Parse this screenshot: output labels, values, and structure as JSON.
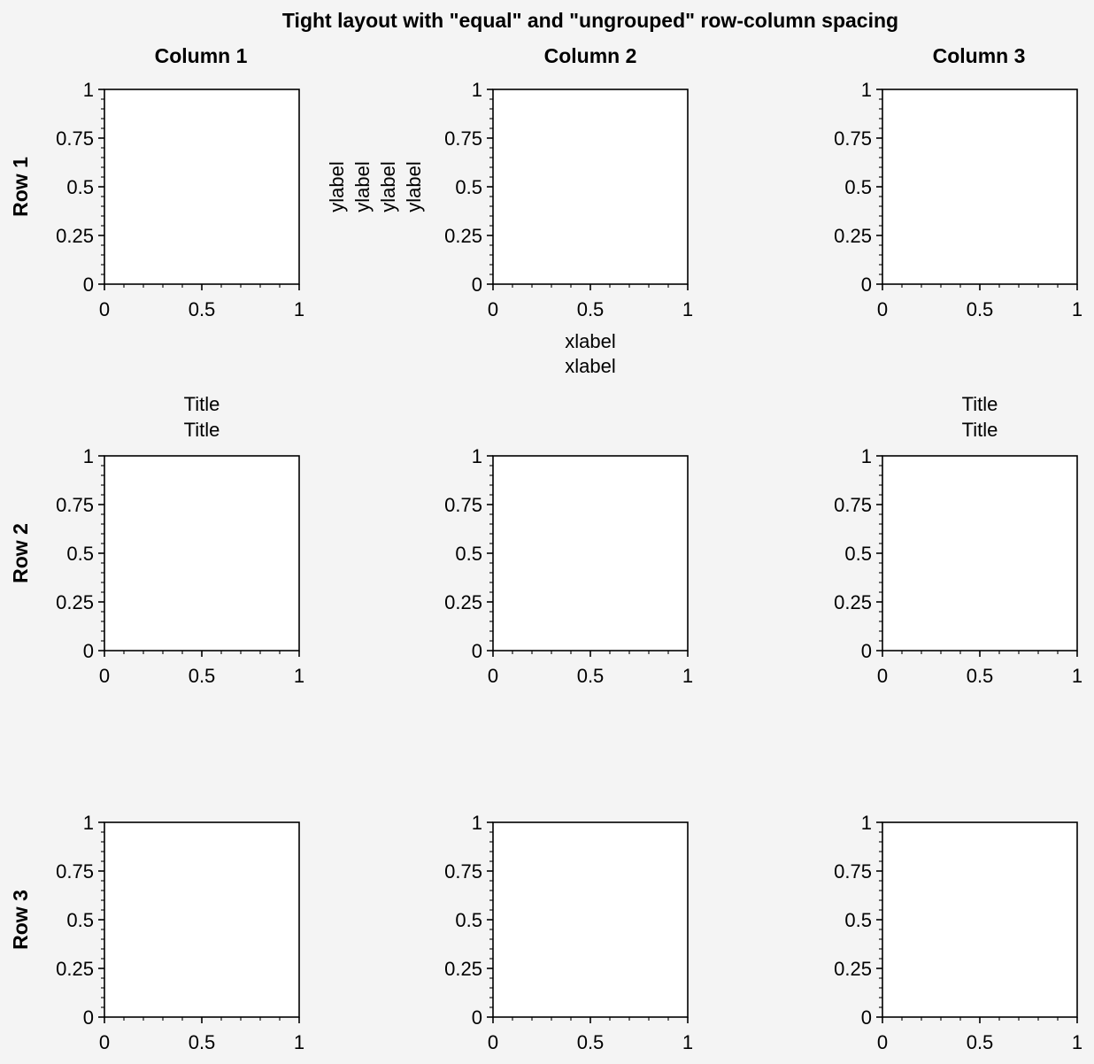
{
  "figure": {
    "title": "Tight layout with \"equal\" and \"ungrouped\" row-column spacing",
    "column_titles": [
      "Column 1",
      "Column 2",
      "Column 3"
    ],
    "row_titles": [
      "Row 1",
      "Row 2",
      "Row 3"
    ]
  },
  "chart_data": [
    {
      "type": "line",
      "row": 1,
      "col": 1,
      "xlim": [
        0,
        1
      ],
      "ylim": [
        0,
        1
      ],
      "xticks": [
        "0",
        "0.5",
        "1"
      ],
      "yticks": [
        "0",
        "0.25",
        "0.5",
        "0.75",
        "1"
      ],
      "series": []
    },
    {
      "type": "line",
      "row": 1,
      "col": 2,
      "xlim": [
        0,
        1
      ],
      "ylim": [
        0,
        1
      ],
      "xticks": [
        "0",
        "0.5",
        "1"
      ],
      "yticks": [
        "0",
        "0.25",
        "0.5",
        "0.75",
        "1"
      ],
      "xlabel": [
        "xlabel",
        "xlabel"
      ],
      "ylabel": [
        "ylabel",
        "ylabel",
        "ylabel",
        "ylabel"
      ],
      "series": []
    },
    {
      "type": "line",
      "row": 1,
      "col": 3,
      "xlim": [
        0,
        1
      ],
      "ylim": [
        0,
        1
      ],
      "xticks": [
        "0",
        "0.5",
        "1"
      ],
      "yticks": [
        "0",
        "0.25",
        "0.5",
        "0.75",
        "1"
      ],
      "series": []
    },
    {
      "type": "line",
      "row": 2,
      "col": 1,
      "xlim": [
        0,
        1
      ],
      "ylim": [
        0,
        1
      ],
      "xticks": [
        "0",
        "0.5",
        "1"
      ],
      "yticks": [
        "0",
        "0.25",
        "0.5",
        "0.75",
        "1"
      ],
      "title": [
        "Title",
        "Title"
      ],
      "series": []
    },
    {
      "type": "line",
      "row": 2,
      "col": 2,
      "xlim": [
        0,
        1
      ],
      "ylim": [
        0,
        1
      ],
      "xticks": [
        "0",
        "0.5",
        "1"
      ],
      "yticks": [
        "0",
        "0.25",
        "0.5",
        "0.75",
        "1"
      ],
      "series": []
    },
    {
      "type": "line",
      "row": 2,
      "col": 3,
      "xlim": [
        0,
        1
      ],
      "ylim": [
        0,
        1
      ],
      "xticks": [
        "0",
        "0.5",
        "1"
      ],
      "yticks": [
        "0",
        "0.25",
        "0.5",
        "0.75",
        "1"
      ],
      "title": [
        "Title",
        "Title"
      ],
      "series": []
    },
    {
      "type": "line",
      "row": 3,
      "col": 1,
      "xlim": [
        0,
        1
      ],
      "ylim": [
        0,
        1
      ],
      "xticks": [
        "0",
        "0.5",
        "1"
      ],
      "yticks": [
        "0",
        "0.25",
        "0.5",
        "0.75",
        "1"
      ],
      "series": []
    },
    {
      "type": "line",
      "row": 3,
      "col": 2,
      "xlim": [
        0,
        1
      ],
      "ylim": [
        0,
        1
      ],
      "xticks": [
        "0",
        "0.5",
        "1"
      ],
      "yticks": [
        "0",
        "0.25",
        "0.5",
        "0.75",
        "1"
      ],
      "series": []
    },
    {
      "type": "line",
      "row": 3,
      "col": 3,
      "xlim": [
        0,
        1
      ],
      "ylim": [
        0,
        1
      ],
      "xticks": [
        "0",
        "0.5",
        "1"
      ],
      "yticks": [
        "0",
        "0.25",
        "0.5",
        "0.75",
        "1"
      ],
      "series": []
    }
  ]
}
